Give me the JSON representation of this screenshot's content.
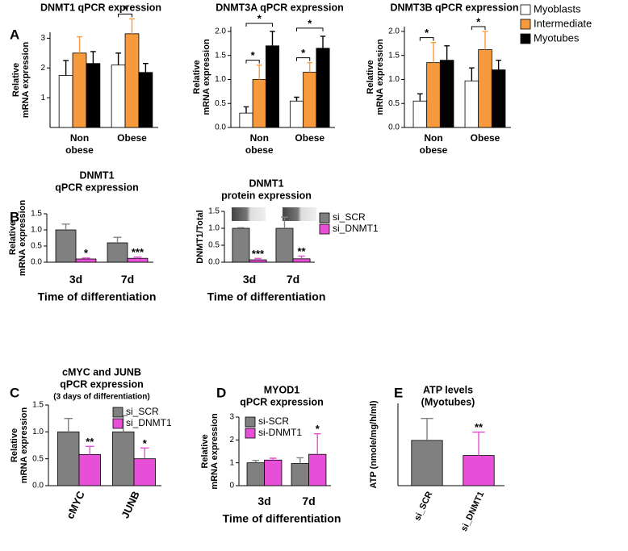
{
  "chart_data": [
    {
      "type": "bar",
      "panel": "A",
      "title": [
        "DNMT1 qPCR expression"
      ],
      "ylabel": [
        "Relative",
        "mRNA expression"
      ],
      "categories": [
        "Non obese",
        "Obese"
      ],
      "ylim": [
        0,
        3.2
      ],
      "yticks": [
        1,
        2,
        3
      ],
      "series": [
        {
          "name": "Myoblasts",
          "color": "#ffffff",
          "values": [
            1.75,
            2.1
          ],
          "errors": [
            0.5,
            0.4
          ]
        },
        {
          "name": "Intermediate",
          "color": "#f79a3e",
          "values": [
            2.5,
            3.15
          ],
          "errors": [
            0.55,
            0.5
          ]
        },
        {
          "name": "Myotubes",
          "color": "#000000",
          "values": [
            2.15,
            1.85
          ],
          "errors": [
            0.4,
            0.3
          ]
        }
      ],
      "comparisons": [
        {
          "category": 1,
          "series": [
            0,
            1
          ],
          "label": "*"
        }
      ]
    },
    {
      "type": "bar",
      "title": [
        "DNMT3A qPCR expression"
      ],
      "ylabel": [
        "Relative",
        "mRNA expression"
      ],
      "categories": [
        "Non obese",
        "Obese"
      ],
      "ylim": [
        0,
        2.1
      ],
      "yticks": [
        {
          "value": 0,
          "label": "0.0"
        },
        {
          "value": 0.5,
          "label": "0.5"
        },
        {
          "value": 1,
          "label": "1.0"
        },
        {
          "value": 1.5,
          "label": "1.5"
        },
        {
          "value": 2,
          "label": "2.0"
        }
      ],
      "series": [
        {
          "name": "Myoblasts",
          "color": "#ffffff",
          "values": [
            0.3,
            0.55
          ],
          "errors": [
            0.13,
            0.08
          ]
        },
        {
          "name": "Intermediate",
          "color": "#f79a3e",
          "values": [
            1.0,
            1.15
          ],
          "errors": [
            0.3,
            0.2
          ]
        },
        {
          "name": "Myotubes",
          "color": "#000000",
          "values": [
            1.7,
            1.65
          ],
          "errors": [
            0.3,
            0.25
          ]
        }
      ],
      "comparisons": [
        {
          "category": 0,
          "series": [
            0,
            1
          ],
          "label": "*"
        },
        {
          "category": 0,
          "series": [
            0,
            2
          ],
          "label": "*"
        },
        {
          "category": 1,
          "series": [
            0,
            1
          ],
          "label": "*"
        },
        {
          "category": 1,
          "series": [
            0,
            2
          ],
          "label": "*"
        }
      ]
    },
    {
      "type": "bar",
      "title": [
        "DNMT3B qPCR expression"
      ],
      "ylabel": [
        "Relative",
        "mRNA expression"
      ],
      "categories": [
        "Non obese",
        "Obese"
      ],
      "ylim": [
        0,
        2.1
      ],
      "legend": "right",
      "yticks": [
        {
          "value": 0,
          "label": "0.0"
        },
        {
          "value": 0.5,
          "label": "0.5"
        },
        {
          "value": 1,
          "label": "1.0"
        },
        {
          "value": 1.5,
          "label": "1.5"
        },
        {
          "value": 2,
          "label": "2.0"
        }
      ],
      "series": [
        {
          "name": "Myoblasts",
          "color": "#ffffff",
          "values": [
            0.55,
            0.97
          ],
          "errors": [
            0.15,
            0.27
          ]
        },
        {
          "name": "Intermediate",
          "color": "#f79a3e",
          "values": [
            1.35,
            1.62
          ],
          "errors": [
            0.42,
            0.38
          ]
        },
        {
          "name": "Myotubes",
          "color": "#000000",
          "values": [
            1.4,
            1.2
          ],
          "errors": [
            0.3,
            0.2
          ]
        }
      ],
      "comparisons": [
        {
          "category": 0,
          "series": [
            0,
            1
          ],
          "label": "*"
        },
        {
          "category": 1,
          "series": [
            0,
            1
          ],
          "label": "*"
        }
      ]
    },
    {
      "type": "bar",
      "panel": "B",
      "title": [
        "DNMT1",
        "qPCR expression"
      ],
      "ylabel": [
        "Relative",
        "mRNA expression"
      ],
      "xlabel": "Time of differentiation",
      "categories": [
        "3d",
        "7d"
      ],
      "ylim": [
        0,
        1.5
      ],
      "yticks": [
        {
          "value": 0,
          "label": "0.0"
        },
        {
          "value": 0.5,
          "label": "0.5"
        },
        {
          "value": 1,
          "label": "1.0"
        },
        {
          "value": 1.5,
          "label": "1.5"
        }
      ],
      "series": [
        {
          "name": "si_SCR",
          "color": "#808080",
          "values": [
            1.0,
            0.6
          ],
          "errors": [
            0.18,
            0.17
          ]
        },
        {
          "name": "si_DNMT1",
          "color": "#e84fd8",
          "values": [
            0.1,
            0.12
          ],
          "errors": [
            0.03,
            0.04
          ],
          "stars": [
            "*",
            "***"
          ]
        }
      ]
    },
    {
      "type": "bar",
      "title": [
        "DNMT1",
        "protein expression"
      ],
      "ylabel": [
        "DNMT1/Total"
      ],
      "xlabel": "Time of differentiation",
      "categories": [
        "3d",
        "7d"
      ],
      "ylim": [
        0,
        1.5
      ],
      "legend": "right",
      "yticks": [
        {
          "value": 0,
          "label": "0.0"
        },
        {
          "value": 0.5,
          "label": "0.5"
        },
        {
          "value": 1,
          "label": "1.0"
        },
        {
          "value": 1.5,
          "label": "1.5"
        }
      ],
      "series": [
        {
          "name": "si_SCR",
          "color": "#808080",
          "values": [
            1.0,
            1.0
          ],
          "errors": [
            0.02,
            0.33
          ]
        },
        {
          "name": "si_DNMT1",
          "color": "#e84fd8",
          "values": [
            0.07,
            0.1
          ],
          "errors": [
            0.04,
            0.08
          ],
          "stars": [
            "***",
            "**"
          ]
        }
      ]
    },
    {
      "type": "bar",
      "panel": "C",
      "title": [
        "cMYC and JUNB",
        "qPCR expression",
        "(3 days of differentiation)"
      ],
      "ylabel": [
        "Relative",
        "mRNA expression"
      ],
      "categories": [
        "cMYC",
        "JUNB"
      ],
      "ylim": [
        0,
        1.5
      ],
      "legend": "top-right",
      "yticks": [
        {
          "value": 0,
          "label": "0.0"
        },
        {
          "value": 0.5,
          "label": "0.5"
        },
        {
          "value": 1,
          "label": "1.0"
        },
        {
          "value": 1.5,
          "label": "1.5"
        }
      ],
      "series": [
        {
          "name": "si_SCR",
          "color": "#808080",
          "values": [
            1.0,
            1.0
          ],
          "errors": [
            0.25,
            0.3
          ]
        },
        {
          "name": "si_DNMT1",
          "color": "#e84fd8",
          "values": [
            0.58,
            0.5
          ],
          "errors": [
            0.15,
            0.2
          ],
          "stars": [
            "**",
            "*"
          ]
        }
      ]
    },
    {
      "type": "bar",
      "panel": "D",
      "title": [
        "MYOD1",
        "qPCR expression"
      ],
      "ylabel": [
        "Relative",
        "mRNA expression"
      ],
      "xlabel": "Time of differentiation",
      "categories": [
        "3d",
        "7d"
      ],
      "ylim": [
        0,
        3
      ],
      "yticks": [
        0,
        1,
        2,
        3
      ],
      "legend": "top-left",
      "series": [
        {
          "name": "si-SCR",
          "color": "#808080",
          "values": [
            1.0,
            0.97
          ],
          "errors": [
            0.1,
            0.25
          ]
        },
        {
          "name": "si-DNMT1",
          "color": "#e84fd8",
          "values": [
            1.12,
            1.37
          ],
          "errors": [
            0.08,
            0.9
          ],
          "stars": [
            null,
            "*"
          ]
        }
      ]
    },
    {
      "type": "bar",
      "panel": "E",
      "title": [
        "ATP levels",
        "(Myotubes)"
      ],
      "ylabel": [
        "ATP (nmole/mg/h/ml)"
      ],
      "categories": [
        "si_SCR",
        "si_DNMT1"
      ],
      "ylim": [
        0,
        60
      ],
      "series": [
        {
          "color": "#e84fd8",
          "values": [
            33,
            22
          ],
          "errors": [
            16,
            17
          ],
          "stars": [
            null,
            "**"
          ]
        }
      ],
      "bar_colors": [
        "#808080",
        "#e84fd8"
      ]
    }
  ]
}
